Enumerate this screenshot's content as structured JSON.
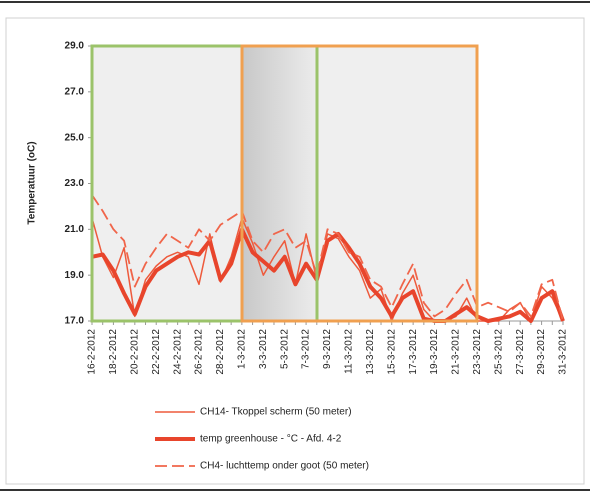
{
  "chart_data": {
    "type": "line",
    "y_label": "Temperatuur (oC)",
    "categories": [
      "16-2-2012",
      null,
      "18-2-2012",
      null,
      "20-2-2012",
      null,
      "22-2-2012",
      null,
      "24-2-2012",
      null,
      "26-2-2012",
      null,
      "28-2-2012",
      null,
      "1-3-2012",
      null,
      "3-3-2012",
      null,
      "5-3-2012",
      null,
      "7-3-2012",
      null,
      "9-3-2012",
      null,
      "11-3-2012",
      null,
      "13-3-2012",
      null,
      "15-3-2012",
      null,
      "17-3-2012",
      null,
      "19-3-2012",
      null,
      "21-3-2012",
      null,
      "23-3-2012",
      null,
      "25-3-2012",
      null,
      "27-3-2012",
      null,
      "29-3-2012",
      null,
      "31-3-2012"
    ],
    "ylim": [
      17,
      29
    ],
    "yticks": [
      {
        "value": 17,
        "label": "17.0"
      },
      {
        "value": 19,
        "label": "19.0"
      },
      {
        "value": 21,
        "label": "21.0"
      },
      {
        "value": 23,
        "label": "23.0"
      },
      {
        "value": 25,
        "label": "25.0"
      },
      {
        "value": 27,
        "label": "27.0"
      },
      {
        "value": 29,
        "label": "29.0"
      }
    ],
    "series": [
      {
        "name": "CH14- Tkoppel scherm (50 meter)",
        "color": "#ee5a3c",
        "style": "thin",
        "values": [
          21.5,
          19.8,
          18.9,
          20.2,
          17.2,
          18.8,
          19.4,
          19.8,
          20.0,
          19.8,
          18.6,
          20.8,
          18.7,
          19.8,
          21.5,
          20.4,
          19.0,
          19.8,
          20.5,
          18.6,
          20.8,
          18.8,
          20.8,
          20.6,
          19.8,
          19.2,
          18.0,
          18.4,
          17.0,
          18.2,
          19.0,
          17.5,
          17.0,
          17.0,
          17.2,
          18.0,
          17.0,
          17.0,
          17.0,
          17.5,
          17.8,
          17.0,
          18.5,
          18.0,
          17.0
        ]
      },
      {
        "name": "temp greenhouse - °C -  Afd. 4-2",
        "color": "#e8452c",
        "style": "thick",
        "values": [
          19.8,
          19.9,
          19.2,
          18.2,
          17.3,
          18.5,
          19.2,
          19.5,
          19.8,
          20.0,
          19.9,
          20.5,
          18.8,
          19.5,
          21.0,
          20.0,
          19.6,
          19.2,
          19.8,
          18.6,
          19.5,
          18.8,
          20.5,
          20.8,
          20.2,
          19.5,
          18.5,
          18.0,
          17.2,
          18.0,
          18.3,
          17.1,
          17.0,
          17.0,
          17.3,
          17.6,
          17.2,
          17.0,
          17.1,
          17.2,
          17.4,
          17.0,
          18.0,
          18.3,
          17.0
        ]
      },
      {
        "name": "CH4- luchttemp onder goot (50 meter)",
        "color": "#f0654a",
        "style": "dashed",
        "values": [
          22.5,
          21.8,
          21.0,
          20.5,
          18.5,
          19.5,
          20.2,
          20.8,
          20.5,
          20.2,
          21.0,
          20.5,
          21.2,
          21.5,
          21.8,
          20.5,
          20.0,
          20.8,
          21.0,
          20.2,
          20.5,
          19.0,
          21.0,
          20.8,
          20.0,
          19.8,
          18.8,
          18.5,
          17.6,
          18.6,
          19.5,
          17.8,
          17.2,
          17.5,
          18.2,
          18.8,
          17.6,
          17.8,
          17.6,
          17.4,
          17.8,
          17.2,
          18.6,
          18.8,
          17.0
        ]
      }
    ]
  }
}
